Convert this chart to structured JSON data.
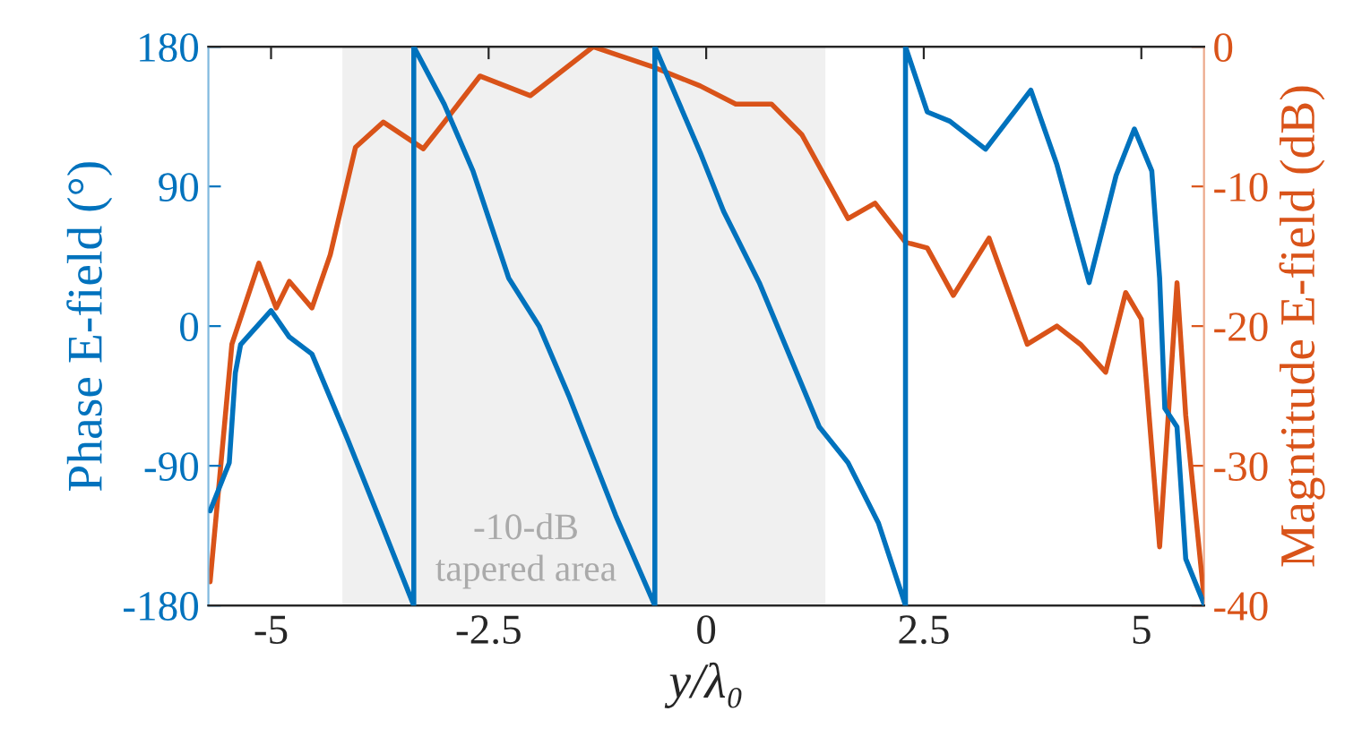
{
  "chart_data": {
    "type": "line",
    "xlabel": "y/λ₀",
    "ylabel": "Phase E-field (°)",
    "y2label": "Magntitude E-field (dB)",
    "series": [
      {
        "axis": "y",
        "color": "#0072bd",
        "x": [
          -5.7,
          -5.48,
          -5.41,
          -5.35,
          -5.0,
          -4.79,
          -4.53,
          -4.12,
          -3.77,
          -3.36,
          -3.36,
          -3.01,
          -2.68,
          -2.27,
          -1.92,
          -1.57,
          -1.04,
          -0.59,
          -0.59,
          -0.07,
          0.2,
          0.61,
          1.3,
          1.63,
          1.98,
          2.29,
          2.29,
          2.54,
          2.8,
          3.21,
          3.73,
          4.03,
          4.4,
          4.71,
          4.92,
          5.12,
          5.21,
          5.27,
          5.41,
          5.51,
          5.72
        ],
        "values": [
          -119,
          -88,
          -30,
          -12,
          10,
          -7,
          -18,
          -73,
          -122,
          -180,
          180,
          143,
          100,
          31,
          0,
          -46,
          -122,
          -180,
          180,
          112,
          74,
          28,
          -65,
          -88,
          -127,
          -180,
          180,
          138,
          132,
          114,
          152,
          104,
          28,
          97,
          127,
          100,
          31,
          -53,
          -65,
          -150,
          -179
        ]
      },
      {
        "axis": "y2",
        "color": "#d95319",
        "x": [
          -5.7,
          -5.45,
          -5.14,
          -4.94,
          -4.79,
          -4.53,
          -4.32,
          -4.03,
          -3.71,
          -3.25,
          -3.01,
          -2.6,
          -2.02,
          -1.3,
          -0.63,
          -0.07,
          0.34,
          0.75,
          1.1,
          1.63,
          1.94,
          2.29,
          2.54,
          2.84,
          3.25,
          3.69,
          4.03,
          4.3,
          4.59,
          4.82,
          5.0,
          5.21,
          5.41,
          5.51,
          5.72
        ],
        "values": [
          -38.3,
          -21.3,
          -15.5,
          -18.7,
          -16.8,
          -18.7,
          -14.9,
          -7.2,
          -5.4,
          -7.3,
          -5.4,
          -2.1,
          -3.5,
          0,
          -1.4,
          -2.8,
          -4.1,
          -4.1,
          -6.3,
          -12.3,
          -11.2,
          -14.0,
          -14.4,
          -17.8,
          -13.7,
          -21.3,
          -20.0,
          -21.3,
          -23.3,
          -17.6,
          -19.5,
          -35.8,
          -16.9,
          -26.4,
          -39.4
        ]
      }
    ],
    "xlim": [
      -5.72,
      5.72
    ],
    "xticks": [
      -5,
      -2.5,
      0,
      2.5,
      5
    ],
    "ylim": [
      -180,
      180
    ],
    "yticks": [
      -180,
      -90,
      0,
      90,
      180
    ],
    "y2lim": [
      -40,
      0
    ],
    "y2ticks": [
      -40,
      -30,
      -20,
      -10,
      0
    ],
    "bands": [
      {
        "axis": "x",
        "from": -4.18,
        "to": 1.37,
        "label": "-10-dB\ntapered area",
        "color": "#f0f0f0"
      }
    ],
    "grid": false,
    "legend": false
  }
}
